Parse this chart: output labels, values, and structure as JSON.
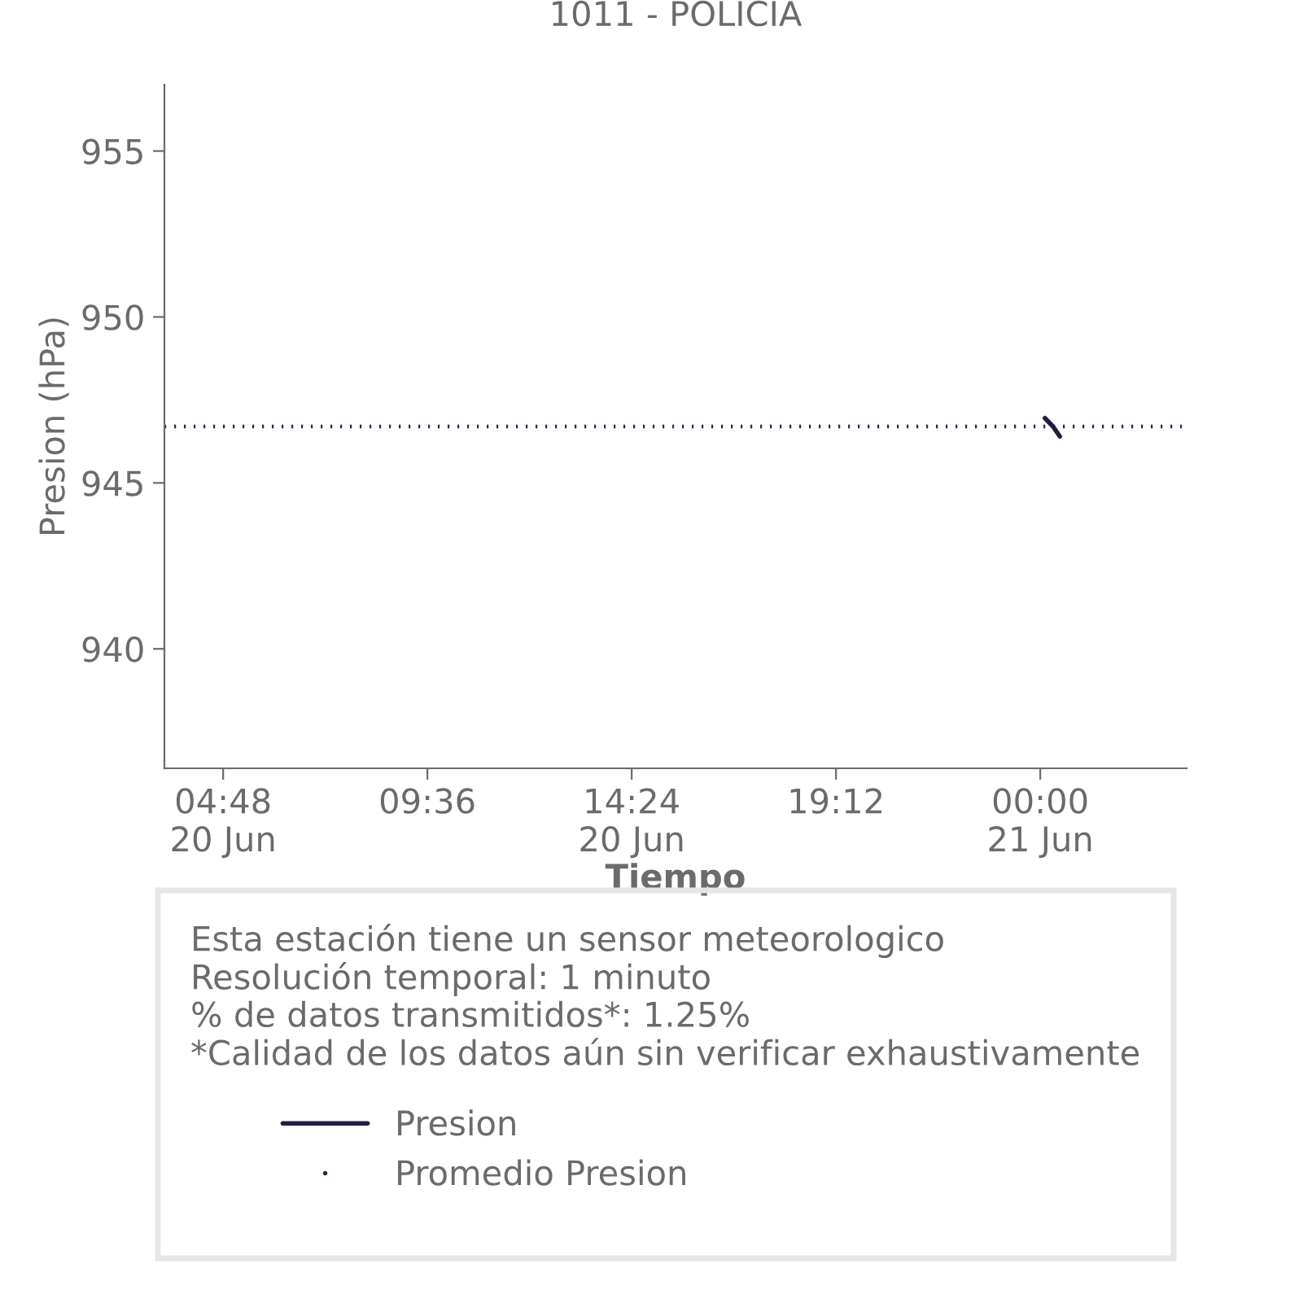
{
  "chart_data": {
    "type": "line",
    "title": "1011 - POLICIA",
    "xlabel": "Tiempo",
    "ylabel": "Presion (hPa)",
    "xlim": [
      3.42,
      27.44
    ],
    "ylim": [
      936.4,
      957
    ],
    "xticks": [
      {
        "value": 4.8,
        "label": "04:48\n20 Jun"
      },
      {
        "value": 9.6,
        "label": "09:36"
      },
      {
        "value": 14.4,
        "label": "14:24\n20 Jun"
      },
      {
        "value": 19.2,
        "label": "19:12"
      },
      {
        "value": 24,
        "label": "00:00\n21 Jun"
      }
    ],
    "yticks": [
      940,
      945,
      950,
      955
    ],
    "grid": false,
    "legend": "bottom",
    "series": [
      {
        "name": "Presion",
        "color": "#221d45",
        "line_style": "solid",
        "x": [
          24.11,
          24.3,
          24.46
        ],
        "values": [
          946.95,
          946.7,
          946.4
        ]
      }
    ],
    "ref_lines": [
      {
        "axis": "y",
        "value": 946.7,
        "label": "Promedio Presion",
        "color": "#2a2650",
        "line_style": "dotted"
      }
    ],
    "annotations": [
      "Esta estación tiene un sensor meteorologico",
      "Resolución temporal: 1 minuto",
      "% de datos transmitidos*: 1.25%",
      "*Calidad de los datos aún sin verificar exhaustivamente"
    ]
  }
}
